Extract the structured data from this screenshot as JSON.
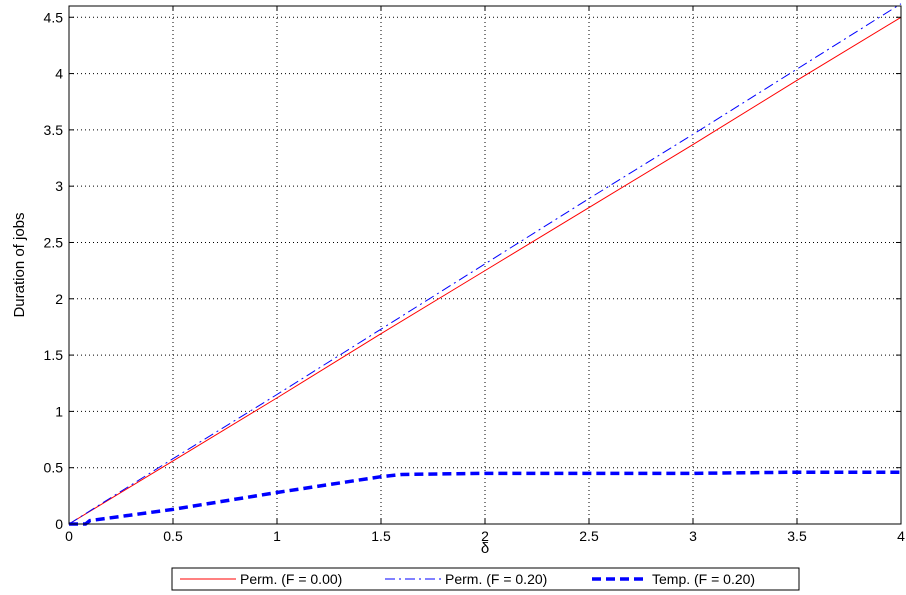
{
  "chart_data": {
    "type": "line",
    "title": "",
    "xlabel": "δ",
    "ylabel": "Duration of jobs",
    "xlim": [
      0,
      4
    ],
    "ylim": [
      0,
      4.6
    ],
    "xticks": [
      0,
      0.5,
      1,
      1.5,
      2,
      2.5,
      3,
      3.5,
      4
    ],
    "xtick_labels": [
      "0",
      "0.5",
      "1",
      "1.5",
      "2",
      "2.5",
      "3",
      "3.5",
      "4"
    ],
    "yticks": [
      0,
      0.5,
      1,
      1.5,
      2,
      2.5,
      3,
      3.5,
      4,
      4.5
    ],
    "ytick_labels": [
      "0",
      "0.5",
      "1",
      "1.5",
      "2",
      "2.5",
      "3",
      "3.5",
      "4",
      "4.5"
    ],
    "grid": true,
    "legend_position": "bottom-center",
    "series": [
      {
        "name": "Perm. (F = 0.00)",
        "color": "#ff0000",
        "style": "solid",
        "x": [
          0,
          0.5,
          1,
          1.5,
          2,
          2.5,
          3,
          3.5,
          4
        ],
        "y": [
          0,
          0.56,
          1.12,
          1.69,
          2.25,
          2.81,
          3.37,
          3.94,
          4.5
        ]
      },
      {
        "name": "Perm. (F = 0.20)",
        "color": "#0000ff",
        "style": "dashdot",
        "x": [
          0,
          0.5,
          1,
          1.5,
          2,
          2.5,
          3,
          3.5,
          4
        ],
        "y": [
          0,
          0.58,
          1.15,
          1.73,
          2.31,
          2.89,
          3.46,
          4.04,
          4.62
        ]
      },
      {
        "name": "Temp. (F = 0.20)",
        "color": "#0000ff",
        "style": "dashed-thick",
        "x": [
          0,
          0.08,
          0.1,
          0.5,
          1,
          1.5,
          1.6,
          2,
          2.5,
          3,
          3.5,
          4
        ],
        "y": [
          0,
          0.0,
          0.03,
          0.13,
          0.28,
          0.42,
          0.44,
          0.45,
          0.45,
          0.45,
          0.46,
          0.46
        ]
      }
    ]
  }
}
